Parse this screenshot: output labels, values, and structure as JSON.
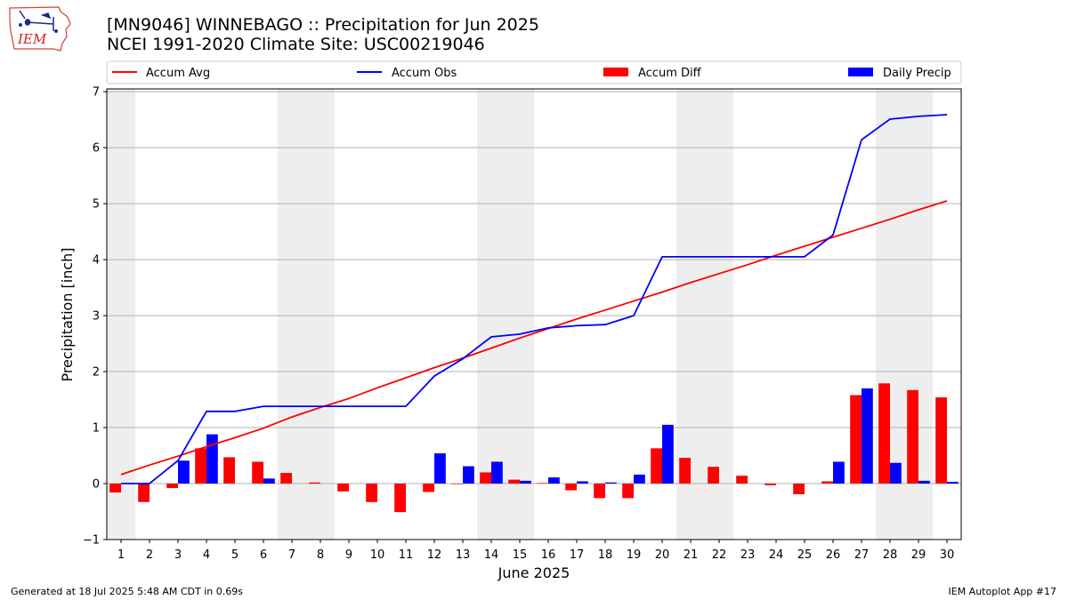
{
  "header": {
    "title_line1": "[MN9046] WINNEBAGO :: Precipitation for Jun 2025",
    "title_line2": "NCEI 1991-2020 Climate Site: USC00219046"
  },
  "logo": {
    "text": "IEM"
  },
  "footer": {
    "generated": "Generated at 18 Jul 2025 5:48 AM CDT in 0.69s",
    "app": "IEM Autoplot App #17"
  },
  "colors": {
    "avg": "#ff0000",
    "obs": "#0000ff",
    "diff": "#ff0000",
    "precip": "#0000ff",
    "weekend": "#eeeeee"
  },
  "chart_data": {
    "type": "bar",
    "xlabel": "June 2025",
    "ylabel": "Precipitation [inch]",
    "ylim": [
      -1.0,
      7.05
    ],
    "xlim": [
      0.5,
      30.5
    ],
    "yticks": [
      -1,
      0,
      1,
      2,
      3,
      4,
      5,
      6,
      7
    ],
    "ytick_labels": [
      "−1",
      "0",
      "1",
      "2",
      "3",
      "4",
      "5",
      "6",
      "7"
    ],
    "grid": "horizontal",
    "legend_position": "top",
    "shaded_weekends": [
      [
        1,
        1
      ],
      [
        7,
        8
      ],
      [
        14,
        15
      ],
      [
        21,
        22
      ],
      [
        28,
        29
      ]
    ],
    "x": [
      1,
      2,
      3,
      4,
      5,
      6,
      7,
      8,
      9,
      10,
      11,
      12,
      13,
      14,
      15,
      16,
      17,
      18,
      19,
      20,
      21,
      22,
      23,
      24,
      25,
      26,
      27,
      28,
      29,
      30
    ],
    "series": [
      {
        "name": "Accum Avg",
        "kind": "line",
        "values": [
          0.16,
          0.33,
          0.49,
          0.66,
          0.82,
          0.99,
          1.19,
          1.36,
          1.52,
          1.71,
          1.89,
          2.07,
          2.24,
          2.42,
          2.6,
          2.77,
          2.94,
          3.1,
          3.26,
          3.42,
          3.59,
          3.75,
          3.91,
          4.08,
          4.24,
          4.4,
          4.56,
          4.72,
          4.89,
          5.05
        ]
      },
      {
        "name": "Accum Obs",
        "kind": "line",
        "values": [
          0.0,
          0.0,
          0.41,
          1.29,
          1.29,
          1.38,
          1.38,
          1.38,
          1.38,
          1.38,
          1.38,
          1.92,
          2.23,
          2.62,
          2.67,
          2.78,
          2.82,
          2.84,
          3.0,
          4.05,
          4.05,
          4.05,
          4.05,
          4.05,
          4.05,
          4.44,
          6.14,
          6.51,
          6.56,
          6.59
        ]
      },
      {
        "name": "Accum Diff",
        "kind": "bar",
        "values": [
          -0.16,
          -0.33,
          -0.08,
          0.63,
          0.47,
          0.39,
          0.19,
          0.02,
          -0.14,
          -0.33,
          -0.51,
          -0.15,
          -0.01,
          0.2,
          0.07,
          0.01,
          -0.12,
          -0.26,
          -0.26,
          0.63,
          0.46,
          0.3,
          0.14,
          -0.03,
          -0.19,
          0.04,
          1.58,
          1.79,
          1.67,
          1.54
        ]
      },
      {
        "name": "Daily Precip",
        "kind": "bar",
        "values": [
          0.0,
          0.0,
          0.41,
          0.88,
          0.0,
          0.09,
          0.0,
          0.0,
          0.0,
          0.0,
          0.0,
          0.54,
          0.31,
          0.39,
          0.05,
          0.11,
          0.04,
          0.02,
          0.16,
          1.05,
          0.0,
          0.0,
          0.0,
          0.0,
          0.0,
          0.39,
          1.7,
          0.37,
          0.05,
          0.03
        ]
      }
    ]
  }
}
